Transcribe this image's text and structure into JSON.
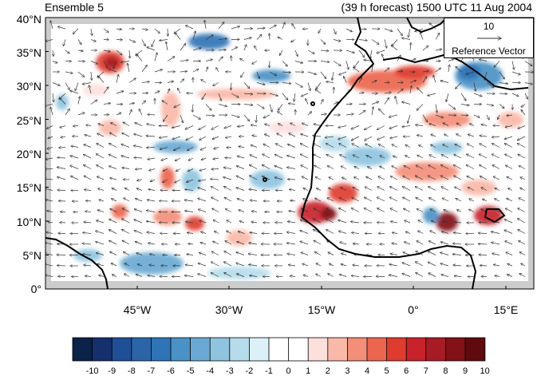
{
  "header": {
    "left_title": "Ensemble 5",
    "right_title": "(39 h forecast) 1500 UTC 11 Aug 2004"
  },
  "map": {
    "lon_range": [
      -62,
      20
    ],
    "lat_range": [
      0,
      40
    ],
    "lat_ticks": [
      "40°N",
      "35°N",
      "30°N",
      "25°N",
      "20°N",
      "15°N",
      "10°N",
      "5°N",
      "0°"
    ],
    "lon_ticks": [
      "45°W",
      "30°W",
      "15°W",
      "0°",
      "15°E"
    ],
    "reference_vector": {
      "magnitude": "10",
      "label": "Reference Vector"
    },
    "colors": {
      "ocean": "#ffffff",
      "missing": "#cccccc",
      "coast": "#000000"
    }
  },
  "colorbar": {
    "labels": [
      "-10",
      "-9",
      "-8",
      "-7",
      "-6",
      "-5",
      "-4",
      "-3",
      "-2",
      "-1",
      "0",
      "1",
      "2",
      "3",
      "4",
      "5",
      "6",
      "7",
      "8",
      "9",
      "10"
    ],
    "colors": [
      "#0b2249",
      "#14306d",
      "#1f4f96",
      "#2b65a8",
      "#2f74b6",
      "#4a91c6",
      "#6aa9d3",
      "#8fc4df",
      "#b6dcec",
      "#dcf0f8",
      "#ffffff",
      "#ffffff",
      "#fde0dc",
      "#f9b8a8",
      "#f38e79",
      "#ec654f",
      "#de3c2f",
      "#c8222a",
      "#a71c24",
      "#821118",
      "#5e0a0e"
    ]
  }
}
